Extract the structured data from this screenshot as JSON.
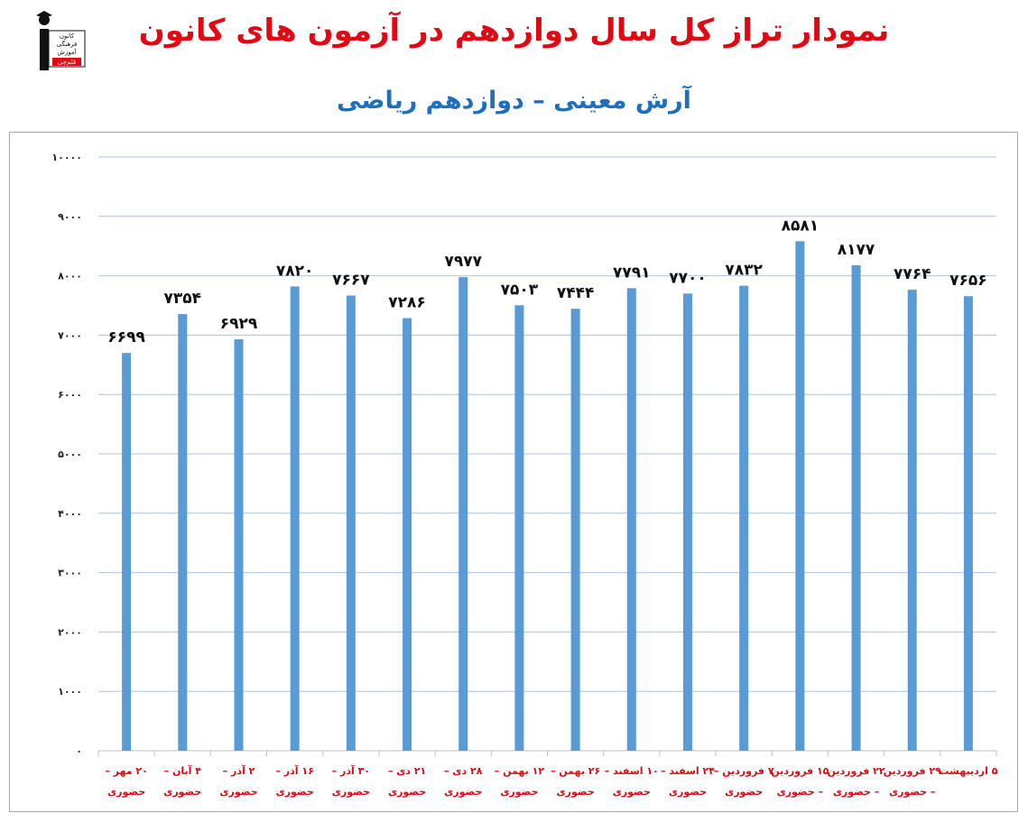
{
  "title": "نمودار تراز کل سال دوازدهم در آزمون های کانون",
  "subtitle": "آرش معینی – دوازدهم ریاضی",
  "logo": {
    "lines": [
      "کانون",
      "فرهنگی",
      "آموزش",
      "قلم‌چی"
    ],
    "icon": "graduate-figure-logo"
  },
  "colors": {
    "title": "#e30613",
    "subtitle": "#1f6fc0",
    "bar": "#5b9bd5",
    "category_label": "#e30613",
    "grid": "#a9c4e6"
  },
  "chart_data": {
    "type": "bar",
    "categories": [
      [
        "۲۰ مهر –",
        "حضوری"
      ],
      [
        "۴ آبان –",
        "حضوری"
      ],
      [
        "۲ آذر –",
        "حضوری"
      ],
      [
        "۱۶ آذر –",
        "حضوری"
      ],
      [
        "۳۰ آذر –",
        "حضوری"
      ],
      [
        "۲۱ دی –",
        "حضوری"
      ],
      [
        "۲۸ دی –",
        "حضوری"
      ],
      [
        "۱۲ بهمن –",
        "حضوری"
      ],
      [
        "۲۶ بهمن –",
        "حضوری"
      ],
      [
        "۱۰ اسفند –",
        "حضوری"
      ],
      [
        "۲۴ اسفند –",
        "حضوری"
      ],
      [
        "۷ فروردین –",
        "حضوری"
      ],
      [
        "۱۵ فروردین",
        "– حضوری"
      ],
      [
        "۲۲ فروردین",
        "– حضوری"
      ],
      [
        "۲۹ فروردین",
        "– حضوری"
      ],
      [
        "۵ اردیبهشت",
        ""
      ]
    ],
    "values": [
      6699,
      7354,
      6929,
      7820,
      7667,
      7286,
      7977,
      7503,
      7444,
      7791,
      7700,
      7832,
      8581,
      8177,
      7764,
      7656
    ],
    "value_labels": [
      "۶۶۹۹",
      "۷۳۵۴",
      "۶۹۲۹",
      "۷۸۲۰",
      "۷۶۶۷",
      "۷۲۸۶",
      "۷۹۷۷",
      "۷۵۰۳",
      "۷۴۴۴",
      "۷۷۹۱",
      "۷۷۰۰",
      "۷۸۳۲",
      "۸۵۸۱",
      "۸۱۷۷",
      "۷۷۶۴",
      "۷۶۵۶"
    ],
    "ylim": [
      0,
      10000
    ],
    "yticks": [
      0,
      1000,
      2000,
      3000,
      4000,
      5000,
      6000,
      7000,
      8000,
      9000,
      10000
    ],
    "ytick_labels": [
      "۰",
      "۱۰۰۰",
      "۲۰۰۰",
      "۳۰۰۰",
      "۴۰۰۰",
      "۵۰۰۰",
      "۶۰۰۰",
      "۷۰۰۰",
      "۸۰۰۰",
      "۹۰۰۰",
      "۱۰۰۰۰"
    ],
    "grid": true,
    "legend": "none"
  }
}
